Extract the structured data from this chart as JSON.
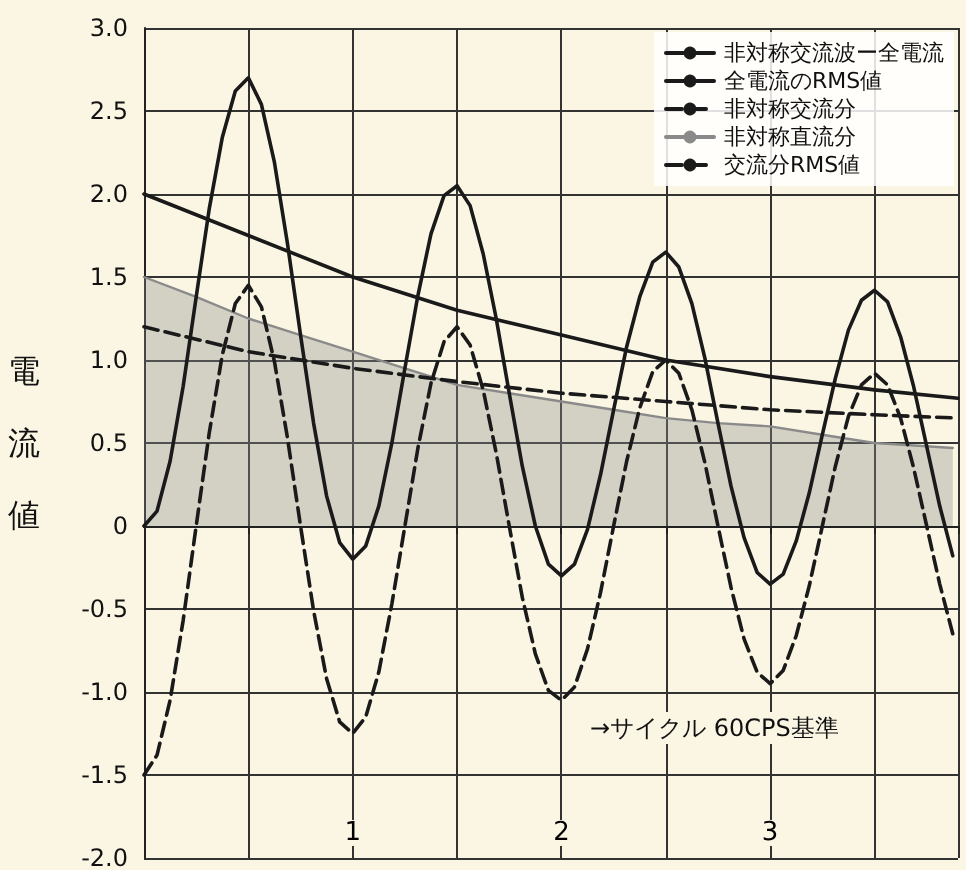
{
  "chart_data": {
    "type": "line",
    "ylabel": "電流値",
    "xlim": [
      0,
      3.9
    ],
    "xticks": [
      {
        "value": 0,
        "label": null
      },
      {
        "value": 0.5,
        "label": null
      },
      {
        "value": 1,
        "label": "1"
      },
      {
        "value": 1.5,
        "label": null
      },
      {
        "value": 2,
        "label": "2"
      },
      {
        "value": 2.5,
        "label": null
      },
      {
        "value": 3,
        "label": "3"
      },
      {
        "value": 3.5,
        "label": null
      }
    ],
    "ylim": [
      -2,
      3
    ],
    "yticks": [
      {
        "value": -2,
        "label": "-2.0"
      },
      {
        "value": -1.5,
        "label": "-1.5"
      },
      {
        "value": -1,
        "label": "-1.0"
      },
      {
        "value": -0.5,
        "label": "-0.5"
      },
      {
        "value": 0,
        "label": "0"
      },
      {
        "value": 0.5,
        "label": "0.5"
      },
      {
        "value": 1,
        "label": "1.0"
      },
      {
        "value": 1.5,
        "label": "1.5"
      },
      {
        "value": 2,
        "label": "2.0"
      },
      {
        "value": 2.5,
        "label": "2.5"
      },
      {
        "value": 3,
        "label": "3.0"
      }
    ],
    "grid": true,
    "legend": "top right",
    "marker": "none",
    "annotations": [
      "→サイクル 60CPS基準"
    ],
    "series": [
      {
        "name": "非対称交流波ー全電流",
        "type": "line",
        "line_style": "solid",
        "color": "#1a1a1a",
        "x": [
          0,
          0.0625,
          0.125,
          0.1875,
          0.25,
          0.3125,
          0.375,
          0.4375,
          0.5,
          0.5625,
          0.625,
          0.6875,
          0.75,
          0.8125,
          0.875,
          0.9375,
          1,
          1.0625,
          1.125,
          1.1875,
          1.25,
          1.3125,
          1.375,
          1.4375,
          1.5,
          1.5625,
          1.625,
          1.6875,
          1.75,
          1.8125,
          1.875,
          1.9375,
          2,
          2.0625,
          2.125,
          2.1875,
          2.25,
          2.3125,
          2.375,
          2.4375,
          2.5,
          2.5625,
          2.625,
          2.6875,
          2.75,
          2.8125,
          2.875,
          2.9375,
          3,
          3.0625,
          3.125,
          3.1875,
          3.25,
          3.3125,
          3.375,
          3.4375,
          3.5,
          3.5625,
          3.625,
          3.6875,
          3.75,
          3.8125,
          3.875
        ],
        "values": [
          0,
          0.09,
          0.39,
          0.84,
          1.38,
          1.91,
          2.34,
          2.62,
          2.7,
          2.54,
          2.19,
          1.7,
          1.15,
          0.62,
          0.18,
          -0.1,
          -0.2,
          -0.12,
          0.12,
          0.5,
          0.95,
          1.39,
          1.76,
          1.99,
          2.05,
          1.93,
          1.64,
          1.25,
          0.8,
          0.36,
          0,
          -0.23,
          -0.3,
          -0.23,
          -0.02,
          0.31,
          0.7,
          1.08,
          1.38,
          1.59,
          1.65,
          1.56,
          1.34,
          1.01,
          0.62,
          0.24,
          -0.07,
          -0.28,
          -0.35,
          -0.29,
          -0.09,
          0.2,
          0.55,
          0.89,
          1.18,
          1.36,
          1.42,
          1.35,
          1.14,
          0.84,
          0.48,
          0.12,
          -0.18
        ]
      },
      {
        "name": "全電流のRMS値",
        "type": "line",
        "line_style": "solid",
        "color": "#1a1a1a",
        "x": [
          0,
          0.5,
          1,
          1.5,
          2,
          2.5,
          3,
          3.5,
          3.9
        ],
        "values": [
          2.0,
          1.75,
          1.5,
          1.3,
          1.15,
          1.0,
          0.9,
          0.82,
          0.77
        ]
      },
      {
        "name": "非対称交流分",
        "type": "line",
        "line_style": "dashed",
        "color": "#1a1a1a",
        "x": [
          0,
          0.0625,
          0.125,
          0.1875,
          0.25,
          0.3125,
          0.375,
          0.4375,
          0.5,
          0.5625,
          0.625,
          0.6875,
          0.75,
          0.8125,
          0.875,
          0.9375,
          1,
          1.0625,
          1.125,
          1.1875,
          1.25,
          1.3125,
          1.375,
          1.4375,
          1.5,
          1.5625,
          1.625,
          1.6875,
          1.75,
          1.8125,
          1.875,
          1.9375,
          2,
          2.0625,
          2.125,
          2.1875,
          2.25,
          2.3125,
          2.375,
          2.4375,
          2.5,
          2.5625,
          2.625,
          2.6875,
          2.75,
          2.8125,
          2.875,
          2.9375,
          3,
          3.0625,
          3.125,
          3.1875,
          3.25,
          3.3125,
          3.375,
          3.4375,
          3.5,
          3.5625,
          3.625,
          3.6875,
          3.75,
          3.8125,
          3.875
        ],
        "values": [
          -1.5,
          -1.38,
          -1.05,
          -0.57,
          0,
          0.56,
          1.03,
          1.34,
          1.45,
          1.32,
          0.99,
          0.53,
          0,
          -0.51,
          -0.92,
          -1.18,
          -1.25,
          -1.15,
          -0.88,
          -0.47,
          0,
          0.47,
          0.86,
          1.11,
          1.2,
          1.09,
          0.82,
          0.44,
          0,
          -0.43,
          -0.77,
          -0.99,
          -1.05,
          -0.97,
          -0.74,
          -0.4,
          0,
          0.39,
          0.71,
          0.93,
          1.0,
          0.92,
          0.7,
          0.38,
          0,
          -0.37,
          -0.68,
          -0.88,
          -0.95,
          -0.87,
          -0.66,
          -0.36,
          0,
          0.36,
          0.66,
          0.85,
          0.92,
          0.85,
          0.65,
          0.35,
          0,
          -0.35,
          -0.65
        ]
      },
      {
        "name": "非対称直流分",
        "type": "area",
        "line_style": "solid",
        "color": "#8a8a8a",
        "x": [
          0,
          0.25,
          0.5,
          0.75,
          1,
          1.25,
          1.5,
          1.75,
          2,
          2.25,
          2.5,
          2.75,
          3,
          3.25,
          3.5,
          3.75,
          3.875
        ],
        "values": [
          1.5,
          1.38,
          1.25,
          1.15,
          1.05,
          0.95,
          0.85,
          0.8,
          0.75,
          0.7,
          0.65,
          0.62,
          0.6,
          0.55,
          0.5,
          0.48,
          0.47
        ]
      },
      {
        "name": "交流分RMS値",
        "type": "line",
        "line_style": "dashed",
        "color": "#1a1a1a",
        "x": [
          0,
          0.5,
          1,
          1.5,
          2,
          2.5,
          3,
          3.5,
          3.9
        ],
        "values": [
          1.2,
          1.05,
          0.95,
          0.87,
          0.8,
          0.75,
          0.7,
          0.67,
          0.65
        ]
      }
    ]
  }
}
